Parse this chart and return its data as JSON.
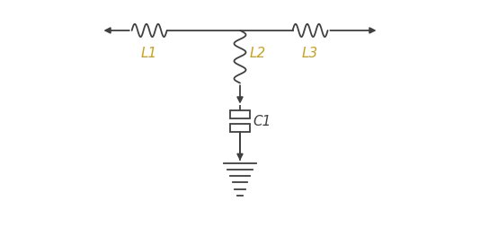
{
  "bg_color": "#ffffff",
  "line_color": "#404040",
  "label_color": "#c8a020",
  "label_L1": "L1",
  "label_L2": "L2",
  "label_L3": "L3",
  "label_C1": "C1",
  "figsize": [
    5.34,
    2.63
  ],
  "dpi": 100
}
